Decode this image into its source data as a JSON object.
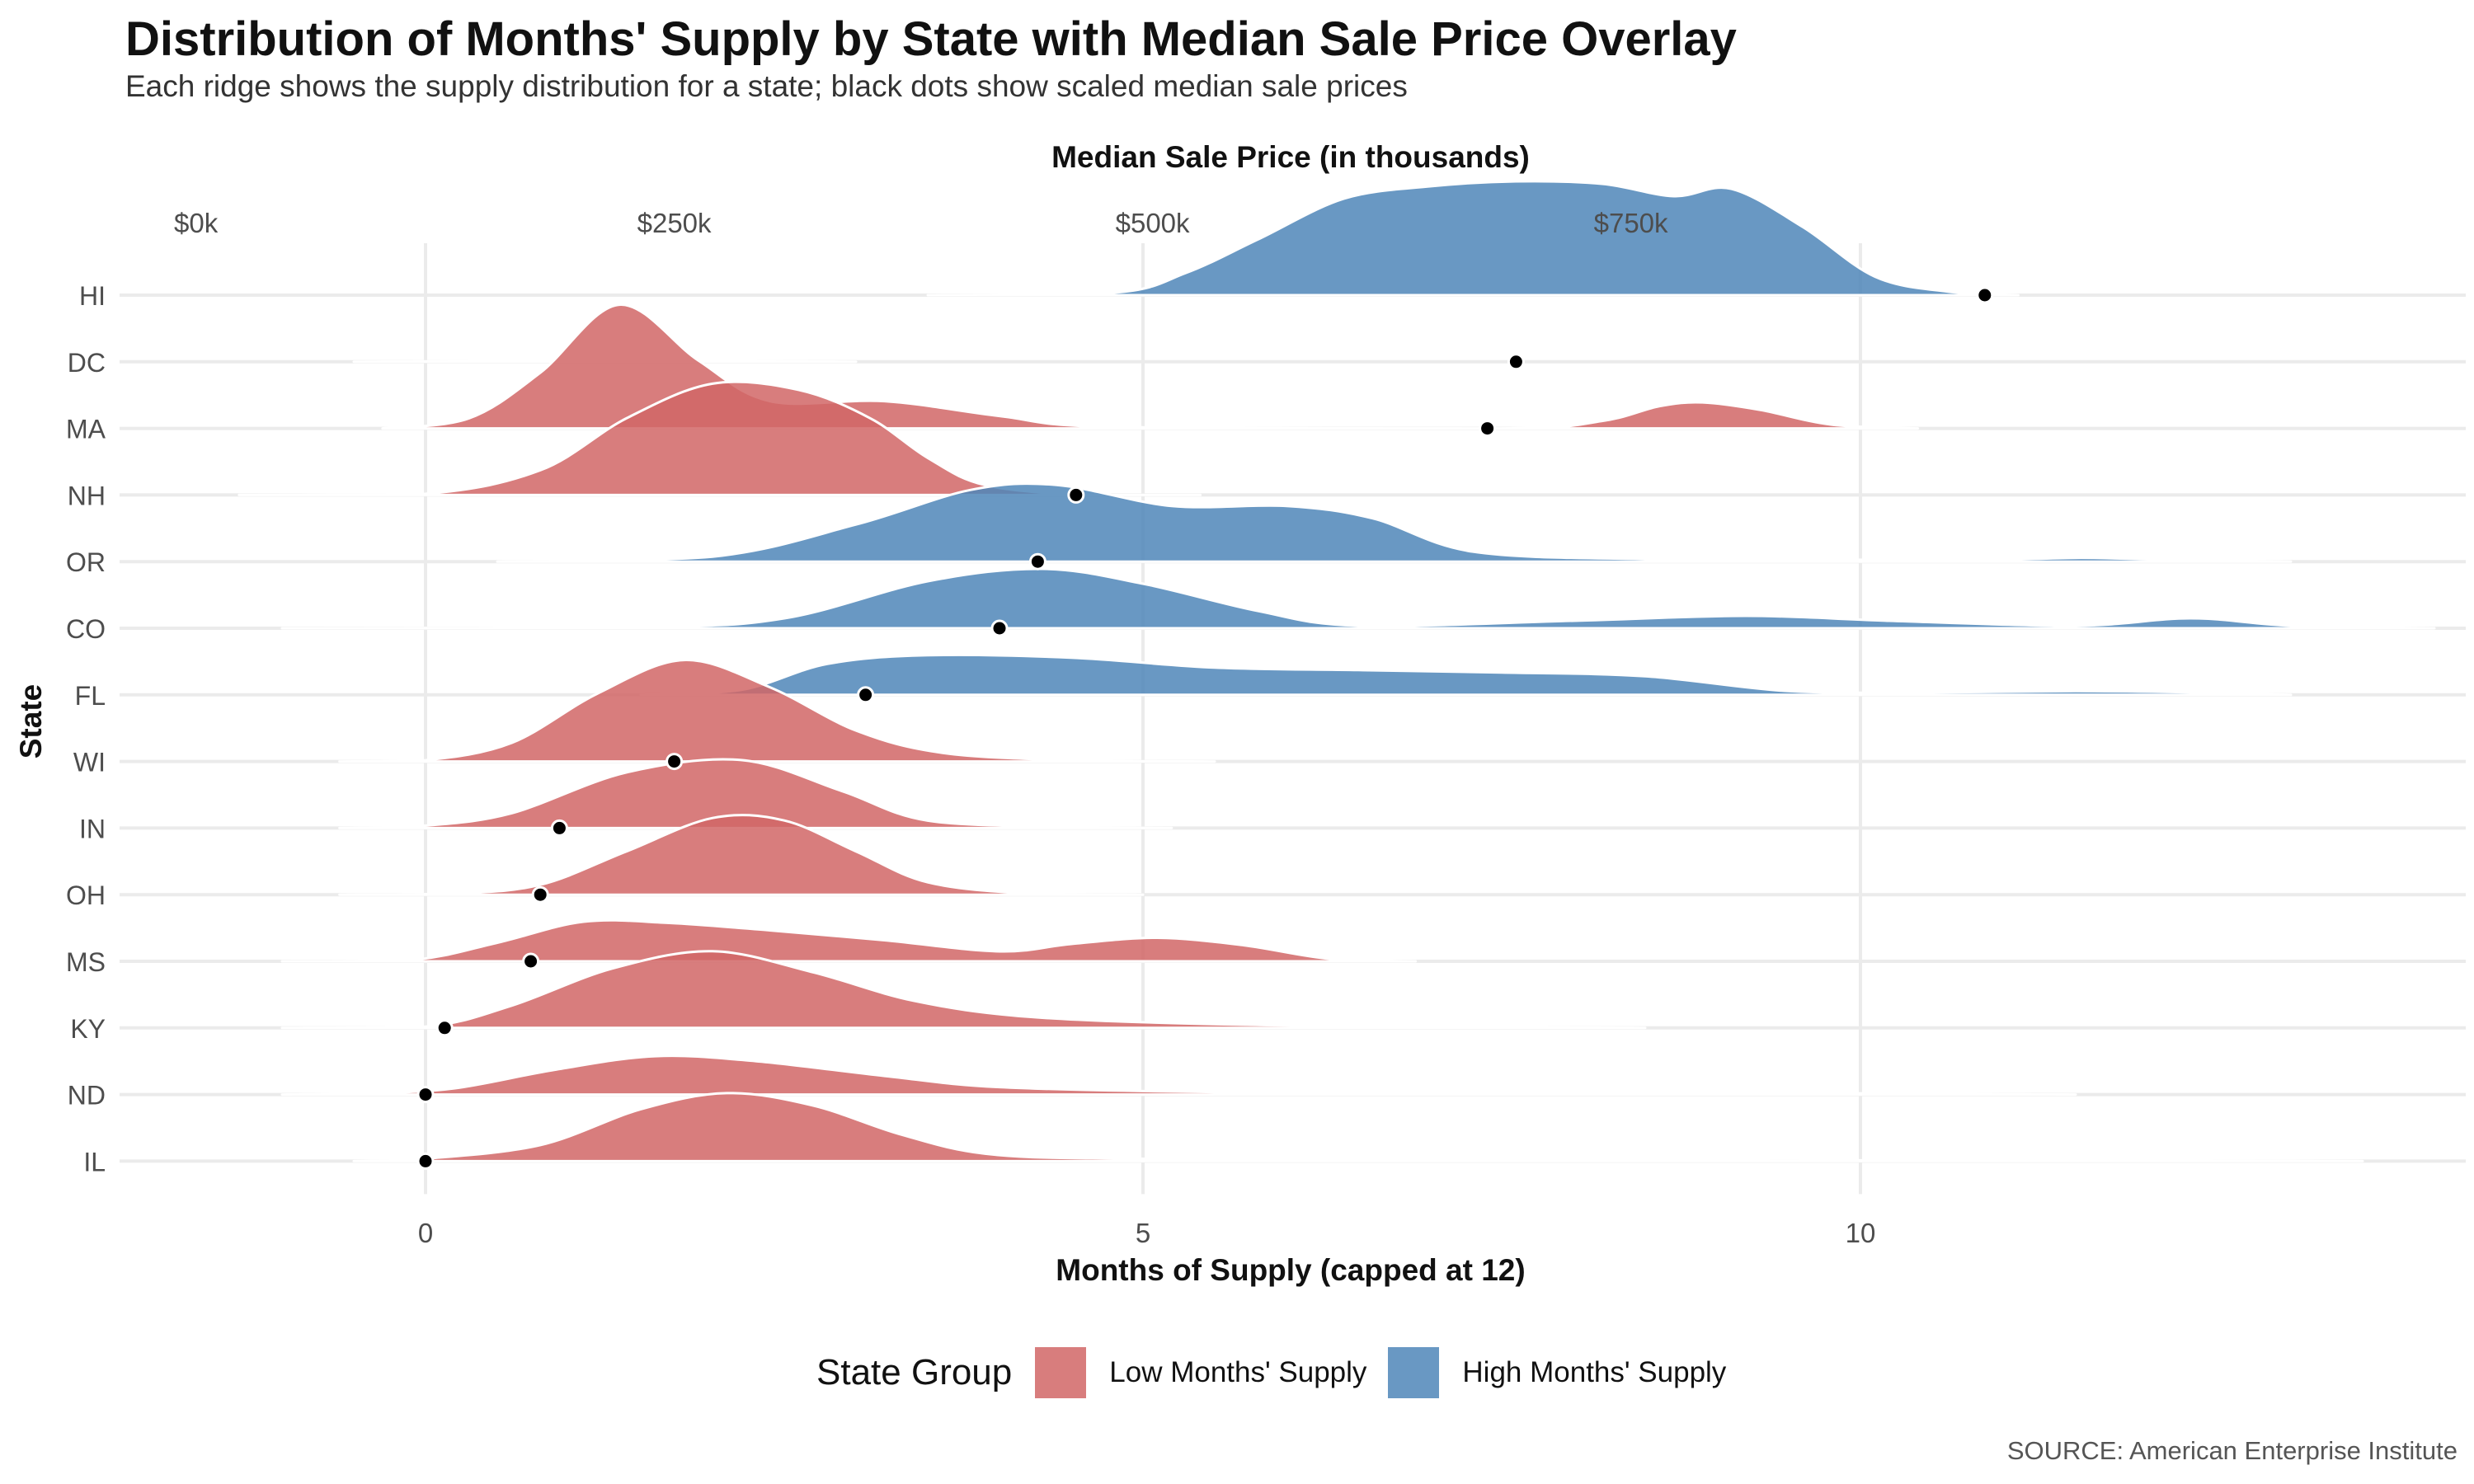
{
  "chart_data": {
    "type": "ridgeline",
    "title": "Distribution of Months' Supply by State with Median Sale Price Overlay",
    "subtitle": "Each ridge shows the supply distribution for a state; black dots show scaled median sale prices",
    "xlabel": "Months of Supply (capped at 12)",
    "ylabel": "State",
    "secondary_xlabel": "Median Sale Price (in thousands)",
    "x_ticks": [
      0,
      5,
      10
    ],
    "x_tick_labels": [
      "0",
      "5",
      "10"
    ],
    "xlim": [
      -2.2,
      14.2
    ],
    "secondary_ticks": [
      {
        "label": "$0k",
        "value": 0
      },
      {
        "label": "$250k",
        "value": 250
      },
      {
        "label": "$500k",
        "value": 500
      },
      {
        "label": "$750k",
        "value": 750
      }
    ],
    "price_axis_map": {
      "price_at_zero_months": 120,
      "thousands_per_month": 75
    },
    "legend": {
      "title": "State Group",
      "position": "bottom",
      "items": [
        {
          "label": "Low Months' Supply",
          "color": "#d16666"
        },
        {
          "label": "High Months' Supply",
          "color": "#4f86b8"
        }
      ]
    },
    "source": "SOURCE: American Enterprise Institute",
    "grid": true,
    "states": [
      {
        "state": "HI",
        "group": "High Months' Supply",
        "median_price_k": 935,
        "density": [
          [
            3.5,
            0
          ],
          [
            4.8,
            0.02
          ],
          [
            5.3,
            0.18
          ],
          [
            5.8,
            0.45
          ],
          [
            6.4,
            0.78
          ],
          [
            7.0,
            0.88
          ],
          [
            7.6,
            0.92
          ],
          [
            8.2,
            0.9
          ],
          [
            8.7,
            0.8
          ],
          [
            9.1,
            0.86
          ],
          [
            9.6,
            0.55
          ],
          [
            10.1,
            0.15
          ],
          [
            10.6,
            0.03
          ],
          [
            11.1,
            0
          ]
        ]
      },
      {
        "state": "DC",
        "group": "Low Months' Supply",
        "median_price_k": 690,
        "density": [
          [
            -0.5,
            0
          ],
          [
            1.35,
            0.01
          ],
          [
            3.0,
            0
          ]
        ]
      },
      {
        "state": "MA",
        "group": "Low Months' Supply",
        "median_price_k": 675,
        "density": [
          [
            -0.3,
            0
          ],
          [
            0.3,
            0.08
          ],
          [
            0.8,
            0.45
          ],
          [
            1.35,
            1.0
          ],
          [
            1.9,
            0.55
          ],
          [
            2.4,
            0.22
          ],
          [
            3.2,
            0.22
          ],
          [
            4.0,
            0.1
          ],
          [
            4.8,
            0.01
          ],
          [
            7.5,
            0
          ],
          [
            8.2,
            0.06
          ],
          [
            8.6,
            0.18
          ],
          [
            8.9,
            0.21
          ],
          [
            9.3,
            0.15
          ],
          [
            9.8,
            0.03
          ],
          [
            10.4,
            0
          ]
        ]
      },
      {
        "state": "NH",
        "group": "Low Months' Supply",
        "median_price_k": 460,
        "density": [
          [
            -1.3,
            0
          ],
          [
            0.0,
            0.01
          ],
          [
            0.8,
            0.2
          ],
          [
            1.4,
            0.62
          ],
          [
            2.0,
            0.9
          ],
          [
            2.6,
            0.85
          ],
          [
            3.1,
            0.62
          ],
          [
            3.5,
            0.3
          ],
          [
            3.9,
            0.08
          ],
          [
            4.6,
            0
          ],
          [
            5.4,
            0
          ]
        ]
      },
      {
        "state": "OR",
        "group": "High Months' Supply",
        "median_price_k": 440,
        "density": [
          [
            0.5,
            0
          ],
          [
            2.0,
            0.04
          ],
          [
            3.0,
            0.3
          ],
          [
            3.8,
            0.58
          ],
          [
            4.4,
            0.62
          ],
          [
            5.2,
            0.45
          ],
          [
            6.0,
            0.45
          ],
          [
            6.6,
            0.35
          ],
          [
            7.3,
            0.08
          ],
          [
            8.5,
            0.02
          ],
          [
            9.5,
            0.02
          ],
          [
            10.7,
            0.01
          ],
          [
            11.5,
            0.03
          ],
          [
            12.0,
            0.02
          ],
          [
            13.0,
            0
          ]
        ]
      },
      {
        "state": "CO",
        "group": "High Months' Supply",
        "median_price_k": 420,
        "density": [
          [
            -1.0,
            0
          ],
          [
            1.5,
            0.01
          ],
          [
            2.5,
            0.08
          ],
          [
            3.5,
            0.38
          ],
          [
            4.3,
            0.48
          ],
          [
            5.0,
            0.36
          ],
          [
            5.8,
            0.14
          ],
          [
            6.5,
            0.02
          ],
          [
            8.0,
            0.06
          ],
          [
            9.2,
            0.1
          ],
          [
            10.2,
            0.06
          ],
          [
            11.5,
            0.02
          ],
          [
            12.3,
            0.08
          ],
          [
            13.0,
            0.02
          ],
          [
            14.0,
            0
          ]
        ]
      },
      {
        "state": "FL",
        "group": "High Months' Supply",
        "median_price_k": 350,
        "density": [
          [
            1.5,
            0
          ],
          [
            2.2,
            0.04
          ],
          [
            2.8,
            0.25
          ],
          [
            3.5,
            0.32
          ],
          [
            4.5,
            0.3
          ],
          [
            5.5,
            0.22
          ],
          [
            6.5,
            0.2
          ],
          [
            7.5,
            0.18
          ],
          [
            8.5,
            0.15
          ],
          [
            9.5,
            0.03
          ],
          [
            10.5,
            0.02
          ],
          [
            11.5,
            0.03
          ],
          [
            12.3,
            0.02
          ],
          [
            13.0,
            0
          ]
        ]
      },
      {
        "state": "WI",
        "group": "Low Months' Supply",
        "median_price_k": 250,
        "density": [
          [
            -0.6,
            0
          ],
          [
            0.0,
            0.01
          ],
          [
            0.6,
            0.15
          ],
          [
            1.2,
            0.55
          ],
          [
            1.8,
            0.82
          ],
          [
            2.4,
            0.6
          ],
          [
            3.0,
            0.25
          ],
          [
            3.6,
            0.07
          ],
          [
            4.5,
            0.01
          ],
          [
            5.5,
            0
          ]
        ]
      },
      {
        "state": "IN",
        "group": "Low Months' Supply",
        "median_price_k": 190,
        "density": [
          [
            -0.6,
            0
          ],
          [
            0.0,
            0.02
          ],
          [
            0.6,
            0.12
          ],
          [
            1.4,
            0.45
          ],
          [
            2.2,
            0.55
          ],
          [
            2.9,
            0.3
          ],
          [
            3.5,
            0.06
          ],
          [
            4.5,
            0.01
          ],
          [
            5.2,
            0
          ]
        ]
      },
      {
        "state": "OH",
        "group": "Low Months' Supply",
        "median_price_k": 180,
        "density": [
          [
            -0.6,
            0
          ],
          [
            0.2,
            0.01
          ],
          [
            0.8,
            0.08
          ],
          [
            1.4,
            0.35
          ],
          [
            2.0,
            0.62
          ],
          [
            2.5,
            0.6
          ],
          [
            3.0,
            0.35
          ],
          [
            3.5,
            0.1
          ],
          [
            4.2,
            0.01
          ],
          [
            5.0,
            0
          ]
        ]
      },
      {
        "state": "MS",
        "group": "Low Months' Supply",
        "median_price_k": 175,
        "density": [
          [
            -1.0,
            0
          ],
          [
            -0.1,
            0.01
          ],
          [
            0.5,
            0.15
          ],
          [
            1.1,
            0.32
          ],
          [
            1.7,
            0.31
          ],
          [
            2.4,
            0.25
          ],
          [
            3.2,
            0.17
          ],
          [
            4.0,
            0.08
          ],
          [
            4.5,
            0.14
          ],
          [
            5.1,
            0.19
          ],
          [
            5.7,
            0.13
          ],
          [
            6.3,
            0.02
          ],
          [
            6.9,
            0
          ]
        ]
      },
      {
        "state": "KY",
        "group": "Low Months' Supply",
        "median_price_k": 130,
        "density": [
          [
            -1.0,
            0
          ],
          [
            0.0,
            0.01
          ],
          [
            0.6,
            0.18
          ],
          [
            1.3,
            0.48
          ],
          [
            2.0,
            0.62
          ],
          [
            2.7,
            0.45
          ],
          [
            3.4,
            0.22
          ],
          [
            4.2,
            0.09
          ],
          [
            5.5,
            0.03
          ],
          [
            7.0,
            0.01
          ],
          [
            8.5,
            0
          ]
        ]
      },
      {
        "state": "ND",
        "group": "Low Months' Supply",
        "median_price_k": 120,
        "density": [
          [
            -1.0,
            0
          ],
          [
            -0.4,
            0.01
          ],
          [
            0.2,
            0.05
          ],
          [
            0.9,
            0.2
          ],
          [
            1.6,
            0.31
          ],
          [
            2.3,
            0.27
          ],
          [
            3.2,
            0.15
          ],
          [
            4.0,
            0.06
          ],
          [
            5.5,
            0.02
          ],
          [
            7.0,
            0.02
          ],
          [
            8.5,
            0.01
          ],
          [
            9.5,
            0.005
          ],
          [
            10.0,
            0.01
          ],
          [
            10.5,
            0.005
          ],
          [
            11.5,
            0
          ]
        ]
      },
      {
        "state": "IL",
        "group": "Low Months' Supply",
        "median_price_k": 120,
        "density": [
          [
            -0.5,
            0
          ],
          [
            0.0,
            0.02
          ],
          [
            0.8,
            0.13
          ],
          [
            1.5,
            0.42
          ],
          [
            2.1,
            0.55
          ],
          [
            2.7,
            0.45
          ],
          [
            3.3,
            0.22
          ],
          [
            3.9,
            0.06
          ],
          [
            4.8,
            0.02
          ],
          [
            6.5,
            0.015
          ],
          [
            8.0,
            0.01
          ],
          [
            9.5,
            0.005
          ],
          [
            11.0,
            0.01
          ],
          [
            12.5,
            0.005
          ],
          [
            13.5,
            0
          ]
        ]
      }
    ]
  }
}
